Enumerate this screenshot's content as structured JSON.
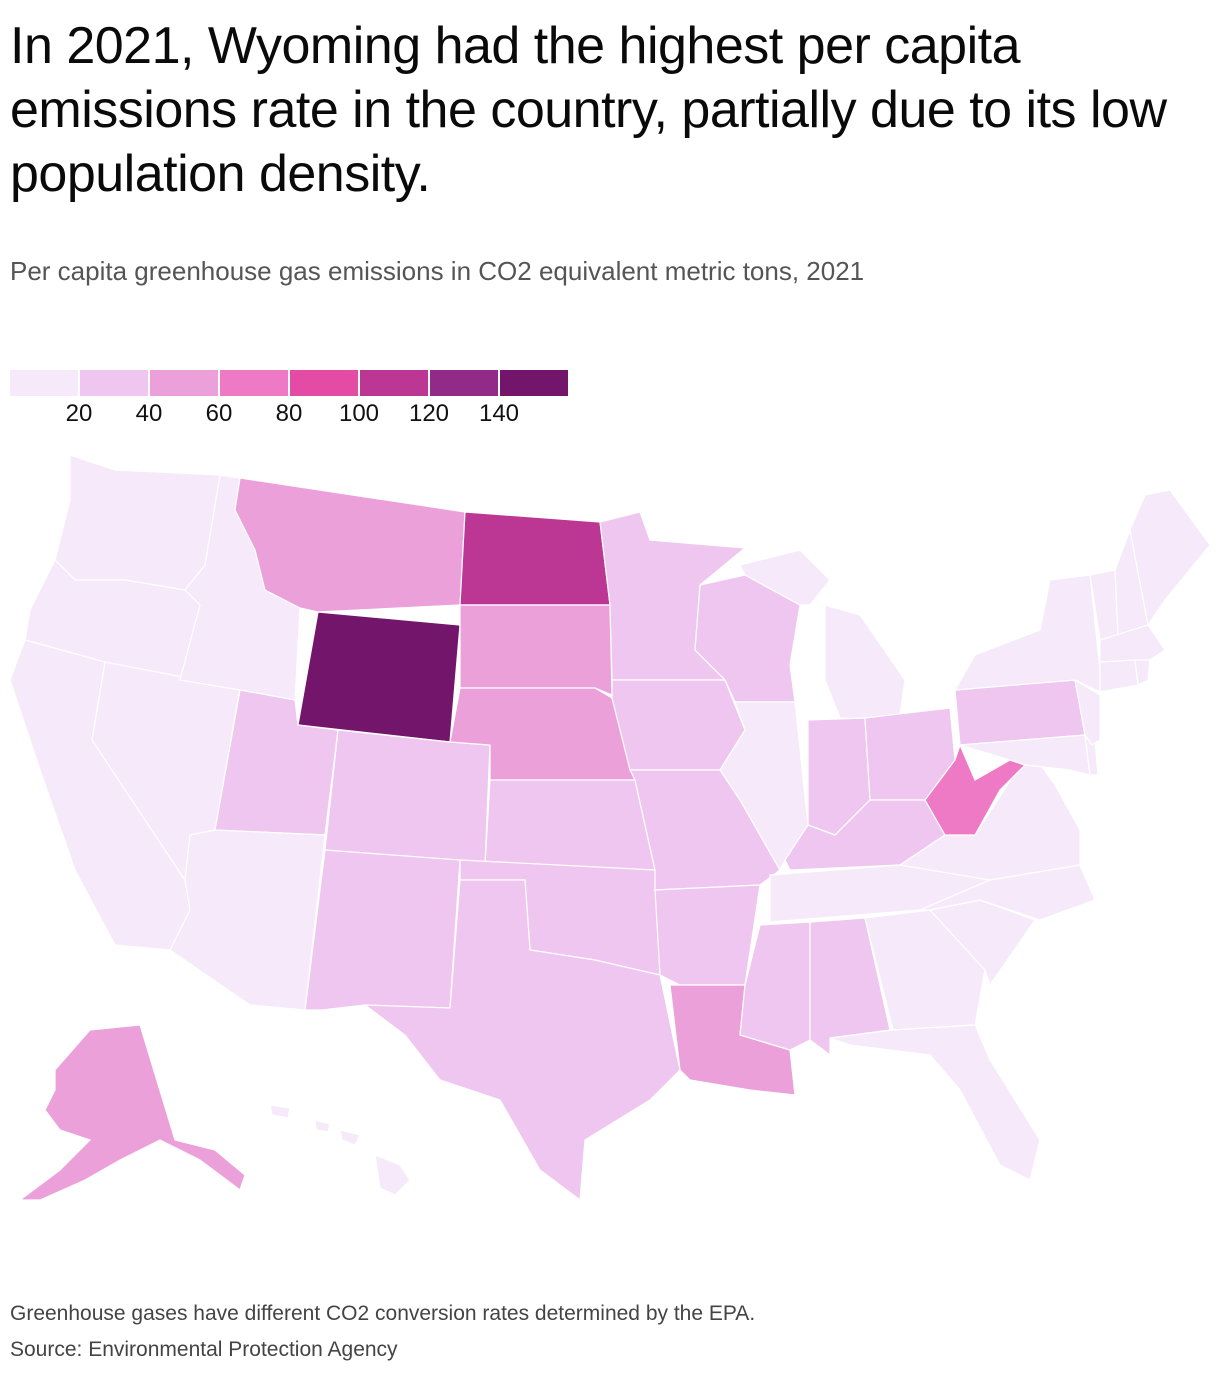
{
  "title": "In 2021, Wyoming had the highest per capita emissions rate in the country, partially due to its low population density.",
  "subtitle": "Per capita greenhouse gas emissions in CO2 equivalent metric tons, 2021",
  "legend": {
    "colors": [
      "#f5e9fa",
      "#efc6ef",
      "#eba0da",
      "#ee79c4",
      "#e44ba5",
      "#bc3694",
      "#922a87",
      "#73166b"
    ],
    "ticks": [
      "20",
      "40",
      "60",
      "80",
      "100",
      "120",
      "140"
    ]
  },
  "map_data": {
    "type": "choropleth",
    "states": {
      "WA": "#f5e9fa",
      "OR": "#f5e9fa",
      "CA": "#f5e9fa",
      "NV": "#f5e9fa",
      "ID": "#f5e9fa",
      "MT": "#eba0da",
      "WY": "#73166b",
      "UT": "#efc6ef",
      "AZ": "#f5e9fa",
      "CO": "#efc6ef",
      "NM": "#efc6ef",
      "ND": "#bc3694",
      "SD": "#eba0da",
      "NE": "#eba0da",
      "KS": "#efc6ef",
      "OK": "#efc6ef",
      "TX": "#efc6ef",
      "MN": "#efc6ef",
      "IA": "#efc6ef",
      "MO": "#efc6ef",
      "AR": "#efc6ef",
      "LA": "#eba0da",
      "WI": "#efc6ef",
      "IL": "#f5e9fa",
      "MI": "#f5e9fa",
      "IN": "#efc6ef",
      "OH": "#efc6ef",
      "KY": "#efc6ef",
      "TN": "#f5e9fa",
      "MS": "#efc6ef",
      "AL": "#efc6ef",
      "GA": "#f5e9fa",
      "FL": "#f5e9fa",
      "SC": "#f5e9fa",
      "NC": "#f5e9fa",
      "VA": "#f5e9fa",
      "WV": "#ee79c4",
      "PA": "#efc6ef",
      "NY": "#f5e9fa",
      "VT": "#f5e9fa",
      "NH": "#f5e9fa",
      "ME": "#f5e9fa",
      "MA": "#f5e9fa",
      "CT": "#f5e9fa",
      "RI": "#f5e9fa",
      "NJ": "#f5e9fa",
      "DE": "#f5e9fa",
      "MD": "#f5e9fa",
      "AK": "#eba0da",
      "HI": "#f5e9fa"
    }
  },
  "footer": {
    "note": "Greenhouse gases have different CO2 conversion rates determined by the EPA.",
    "source": "Source: Environmental Protection Agency"
  }
}
